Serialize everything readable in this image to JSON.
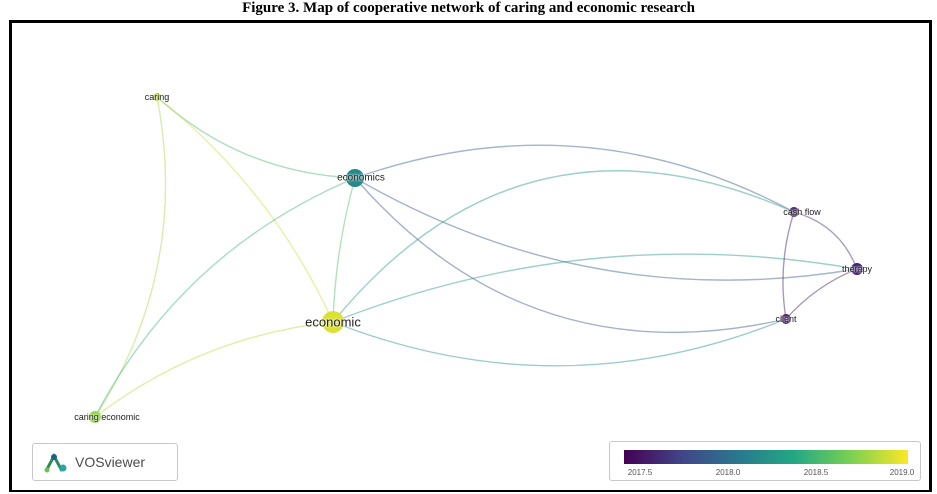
{
  "caption": "Figure 3. Map of cooperative network of caring and economic research",
  "brand": {
    "name": "VOSviewer"
  },
  "legend": {
    "ticks": [
      "2017.5",
      "2018.0",
      "2018.5",
      "2019.0"
    ],
    "colors": [
      "#440154",
      "#414487",
      "#2a788e",
      "#22a884",
      "#7ad151",
      "#fde725"
    ]
  },
  "network": {
    "nodes": [
      {
        "id": "caring",
        "label": "caring",
        "year": 2019.0
      },
      {
        "id": "economics",
        "label": "economics",
        "year": 2018.2
      },
      {
        "id": "cash-flow",
        "label": "cash flow",
        "year": 2017.5
      },
      {
        "id": "therapy",
        "label": "therapy",
        "year": 2017.5
      },
      {
        "id": "client",
        "label": "client",
        "year": 2017.4
      },
      {
        "id": "economic",
        "label": "economic",
        "year": 2019.1
      },
      {
        "id": "caring-economic",
        "label": "caring economic",
        "year": 2018.9
      }
    ],
    "links": [
      [
        "caring",
        "economics"
      ],
      [
        "caring",
        "economic"
      ],
      [
        "caring",
        "caring-economic"
      ],
      [
        "economics",
        "economic"
      ],
      [
        "economics",
        "caring-economic"
      ],
      [
        "economics",
        "cash-flow"
      ],
      [
        "economics",
        "therapy"
      ],
      [
        "economics",
        "client"
      ],
      [
        "economic",
        "cash-flow"
      ],
      [
        "economic",
        "therapy"
      ],
      [
        "economic",
        "client"
      ],
      [
        "economic",
        "caring-economic"
      ],
      [
        "cash-flow",
        "therapy"
      ],
      [
        "cash-flow",
        "client"
      ],
      [
        "therapy",
        "client"
      ]
    ]
  }
}
